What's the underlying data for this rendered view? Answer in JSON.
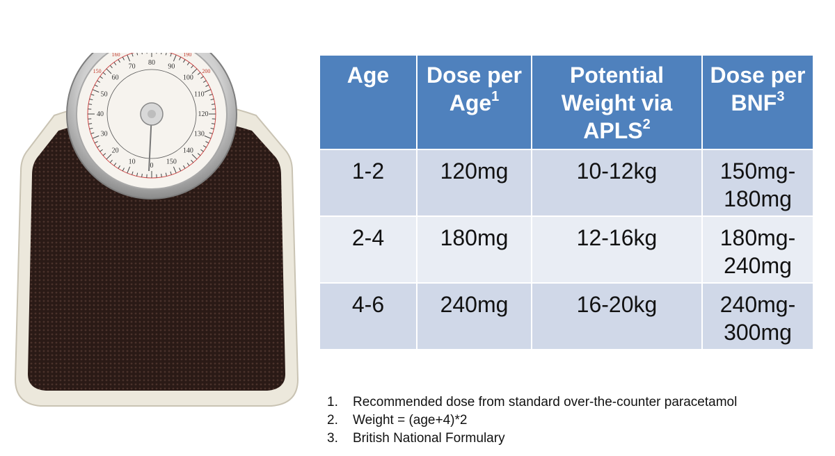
{
  "table": {
    "headers": [
      {
        "text": "Age",
        "sup": ""
      },
      {
        "text": "Dose per Age",
        "sup": "1"
      },
      {
        "text": "Potential Weight via APLS",
        "sup": "2"
      },
      {
        "text": "Dose per BNF",
        "sup": "3"
      }
    ],
    "rows": [
      [
        "1-2",
        "120mg",
        "10-12kg",
        "150mg-180mg"
      ],
      [
        "2-4",
        "180mg",
        "12-16kg",
        "180mg-240mg"
      ],
      [
        "4-6",
        "240mg",
        "16-20kg",
        "240mg-300mg"
      ]
    ]
  },
  "notes": [
    {
      "num": "1.",
      "text": "Recommended dose from standard over-the-counter paracetamol"
    },
    {
      "num": "2.",
      "text": "Weight = (age+4)*2"
    },
    {
      "num": "3.",
      "text": "British National Formulary"
    }
  ],
  "scale_dial": {
    "outer_numbers": [
      "150",
      "160",
      "170",
      "180",
      "190",
      "200"
    ],
    "inner_numbers": [
      "0",
      "10",
      "20",
      "30",
      "40",
      "50",
      "60",
      "70",
      "80",
      "90",
      "100",
      "110",
      "120",
      "130",
      "140",
      "150"
    ]
  },
  "colors": {
    "header_bg": "#4f81bd",
    "row_odd_bg": "#d0d8e8",
    "row_even_bg": "#e9edf4",
    "mat": "#2a1a16",
    "scale_body": "#ece8dc"
  }
}
